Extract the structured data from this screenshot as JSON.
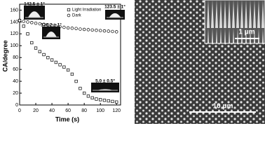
{
  "chart_data": {
    "type": "scatter",
    "x_label": "Time (s)",
    "y_label": "CA/degree",
    "x": [
      0,
      5,
      10,
      15,
      20,
      25,
      30,
      35,
      40,
      45,
      50,
      55,
      60,
      65,
      70,
      75,
      80,
      85,
      90,
      95,
      100,
      105,
      110,
      115,
      120
    ],
    "series": [
      {
        "name": "Light Irradiation",
        "color": "#000000",
        "marker": "square",
        "values": [
          142.5,
          133,
          120,
          105,
          96,
          90,
          85,
          80,
          76,
          72,
          68,
          64,
          59,
          52,
          40,
          28,
          20,
          15,
          12,
          10,
          9,
          8,
          7,
          6,
          5
        ]
      },
      {
        "name": "Dark",
        "color": "#000000",
        "marker": "circle",
        "values": [
          142.5,
          141,
          140,
          139,
          138,
          137,
          136,
          135,
          134,
          133,
          132,
          131,
          130,
          129.5,
          129,
          128,
          127.5,
          127,
          126.5,
          126,
          125.5,
          125,
          124.5,
          124,
          123.5
        ]
      }
    ],
    "xlim": [
      0,
      125
    ],
    "xticks": [
      0,
      20,
      40,
      60,
      80,
      100,
      120
    ],
    "ylim": [
      0,
      170
    ],
    "yticks": [
      0,
      20,
      40,
      60,
      80,
      100,
      120,
      140,
      160
    ],
    "legend": "top-right",
    "annotations": [
      "142.5 ± 1°",
      "123.5 ± 1°",
      "136.2 ± 1°",
      "5.0 ± 0.5°"
    ]
  },
  "sem": {
    "scale_labels": [
      "1 μm",
      "10 μm"
    ]
  }
}
